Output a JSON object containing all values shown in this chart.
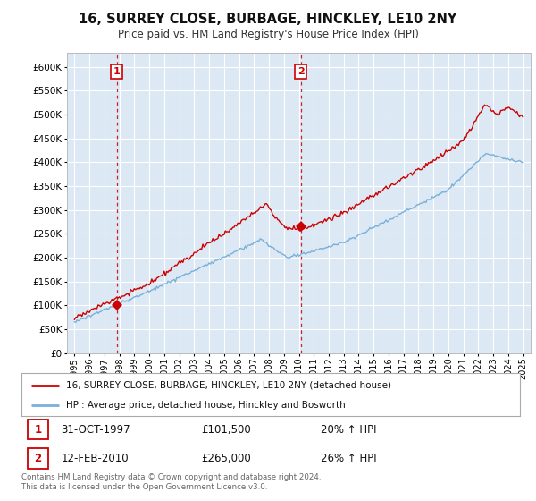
{
  "title": "16, SURREY CLOSE, BURBAGE, HINCKLEY, LE10 2NY",
  "subtitle": "Price paid vs. HM Land Registry's House Price Index (HPI)",
  "background_color": "#ffffff",
  "plot_bg_color": "#dce9f5",
  "grid_color": "#ffffff",
  "hpi_line_color": "#7ab0d8",
  "price_line_color": "#cc0000",
  "purchase1_date_x": 1997.83,
  "purchase1_price": 101500,
  "purchase2_date_x": 2010.12,
  "purchase2_price": 265000,
  "legend_label1": "16, SURREY CLOSE, BURBAGE, HINCKLEY, LE10 2NY (detached house)",
  "legend_label2": "HPI: Average price, detached house, Hinckley and Bosworth",
  "note1_date": "31-OCT-1997",
  "note1_price": "£101,500",
  "note1_hpi": "20% ↑ HPI",
  "note2_date": "12-FEB-2010",
  "note2_price": "£265,000",
  "note2_hpi": "26% ↑ HPI",
  "footer": "Contains HM Land Registry data © Crown copyright and database right 2024.\nThis data is licensed under the Open Government Licence v3.0.",
  "xlim": [
    1994.5,
    2025.5
  ],
  "ylim": [
    0,
    630000
  ],
  "yticks": [
    0,
    50000,
    100000,
    150000,
    200000,
    250000,
    300000,
    350000,
    400000,
    450000,
    500000,
    550000,
    600000
  ],
  "xticks": [
    1995,
    1996,
    1997,
    1998,
    1999,
    2000,
    2001,
    2002,
    2003,
    2004,
    2005,
    2006,
    2007,
    2008,
    2009,
    2010,
    2011,
    2012,
    2013,
    2014,
    2015,
    2016,
    2017,
    2018,
    2019,
    2020,
    2021,
    2022,
    2023,
    2024,
    2025
  ]
}
